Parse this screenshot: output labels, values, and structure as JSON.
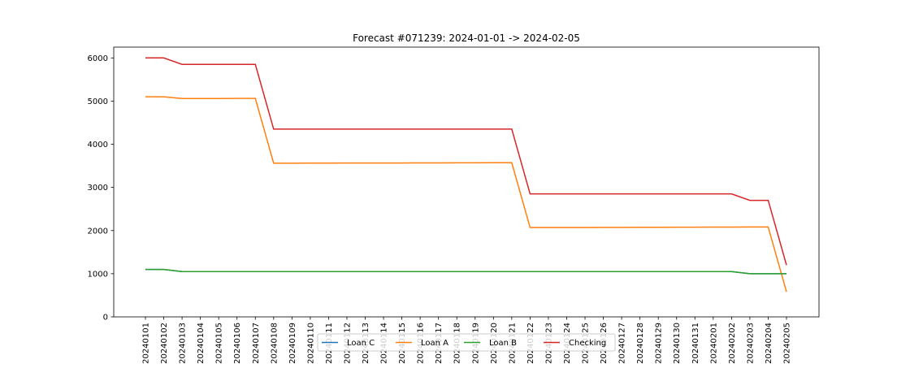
{
  "chart_data": {
    "type": "line",
    "title": "Forecast #071239: 2024-01-01 -> 2024-02-05",
    "xlabel": "",
    "ylabel": "",
    "ylim": [
      0,
      6250
    ],
    "yticks": [
      0,
      1000,
      2000,
      3000,
      4000,
      5000,
      6000
    ],
    "grid": false,
    "legend_position": "bottom-center",
    "x": [
      "20240101",
      "20240102",
      "20240103",
      "20240104",
      "20240105",
      "20240106",
      "20240107",
      "20240108",
      "20240109",
      "20240110",
      "20240111",
      "20240112",
      "20240113",
      "20240114",
      "20240115",
      "20240116",
      "20240117",
      "20240118",
      "20240119",
      "20240120",
      "20240121",
      "20240122",
      "20240123",
      "20240124",
      "20240125",
      "20240126",
      "20240127",
      "20240128",
      "20240129",
      "20240130",
      "20240131",
      "20240201",
      "20240202",
      "20240203",
      "20240204",
      "20240205"
    ],
    "series": [
      {
        "name": "Loan C",
        "color": "#1f77b4",
        "values": [
          1100,
          1100,
          1050,
          1050,
          1050,
          1050,
          1050,
          1050,
          1050,
          1050,
          1050,
          1050,
          1050,
          1050,
          1050,
          1050,
          1050,
          1050,
          1050,
          1050,
          1050,
          1050,
          1050,
          1050,
          1050,
          1050,
          1050,
          1050,
          1050,
          1050,
          1050,
          1050,
          1050,
          1000,
          1000,
          1000
        ]
      },
      {
        "name": "Loan A",
        "color": "#ff7f0e",
        "values": [
          5100,
          5100,
          5060,
          5060,
          5060,
          5062,
          5062,
          3560,
          3560,
          3562,
          3562,
          3564,
          3564,
          3566,
          3566,
          3568,
          3568,
          3570,
          3570,
          3572,
          3572,
          2070,
          2070,
          2072,
          2072,
          2074,
          2074,
          2076,
          2076,
          2078,
          2078,
          2080,
          2080,
          2082,
          2082,
          580
        ]
      },
      {
        "name": "Loan B",
        "color": "#2ca02c",
        "values": [
          1100,
          1100,
          1050,
          1050,
          1050,
          1050,
          1050,
          1050,
          1050,
          1050,
          1050,
          1050,
          1050,
          1050,
          1050,
          1050,
          1050,
          1050,
          1050,
          1050,
          1050,
          1050,
          1050,
          1050,
          1050,
          1050,
          1050,
          1050,
          1050,
          1050,
          1050,
          1050,
          1050,
          1000,
          1000,
          1000
        ]
      },
      {
        "name": "Checking",
        "color": "#d62728",
        "values": [
          6000,
          6000,
          5850,
          5850,
          5850,
          5850,
          5850,
          4350,
          4350,
          4350,
          4350,
          4350,
          4350,
          4350,
          4350,
          4350,
          4350,
          4350,
          4350,
          4350,
          4350,
          2850,
          2850,
          2850,
          2850,
          2850,
          2850,
          2850,
          2850,
          2850,
          2850,
          2850,
          2850,
          2700,
          2700,
          1200
        ]
      }
    ]
  }
}
